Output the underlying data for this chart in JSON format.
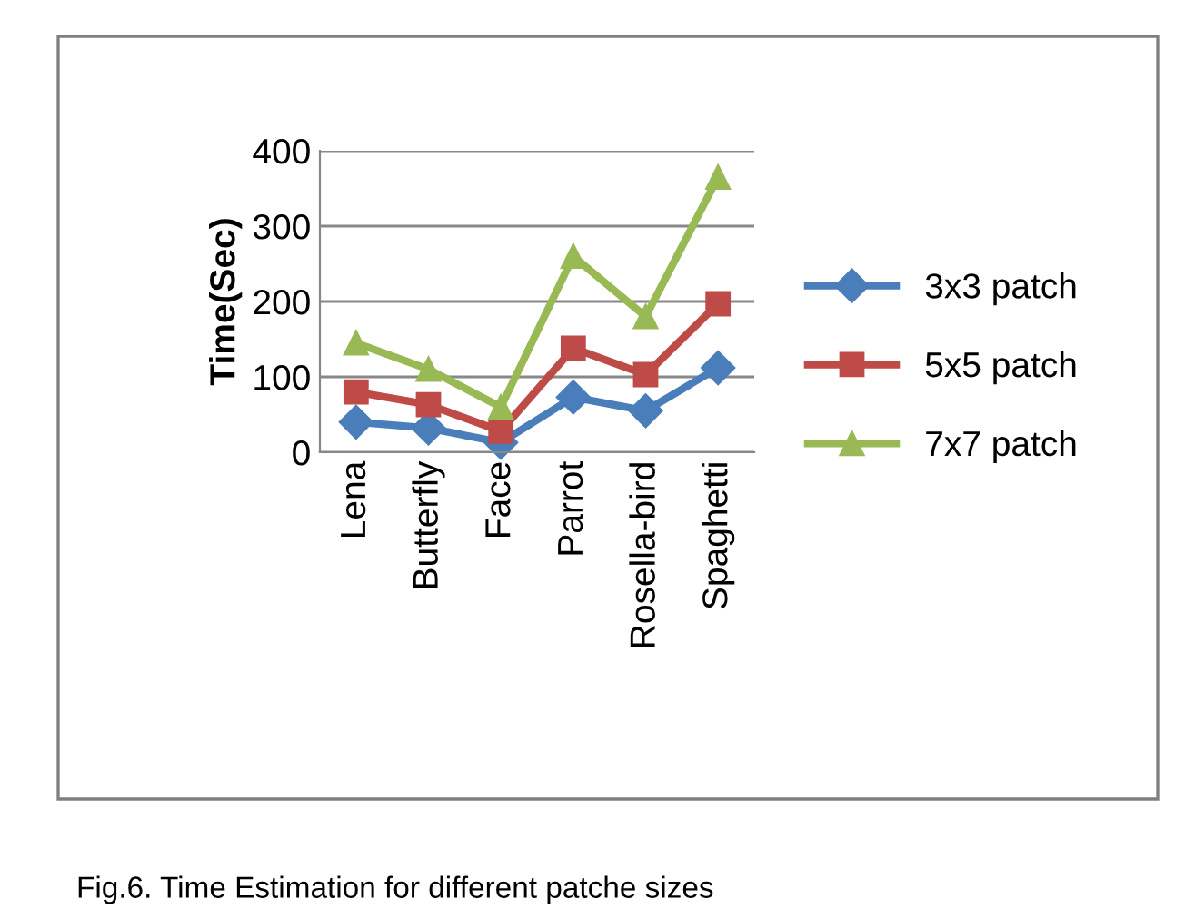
{
  "chart_data": {
    "type": "line",
    "ylabel": "Time(Sec)",
    "categories": [
      "Lena",
      "Butterfly",
      "Face",
      "Parrot",
      "Rosella-bird",
      "Spaghetti"
    ],
    "series": [
      {
        "name": "3x3 patch",
        "color": "#4a7ebb",
        "marker": "diamond",
        "values": [
          40,
          32,
          13,
          73,
          55,
          112
        ]
      },
      {
        "name": "5x5 patch",
        "color": "#be4b48",
        "marker": "square",
        "values": [
          80,
          63,
          28,
          138,
          103,
          197
        ]
      },
      {
        "name": "7x7 patch",
        "color": "#98b954",
        "marker": "triangle",
        "values": [
          145,
          110,
          60,
          260,
          180,
          365
        ]
      }
    ],
    "ylim": [
      0,
      400
    ],
    "yticks": [
      0,
      100,
      200,
      300,
      400
    ],
    "grid": "y",
    "legend": "right",
    "annotations": [
      "Fig.6. Time Estimation for different patche sizes"
    ]
  }
}
